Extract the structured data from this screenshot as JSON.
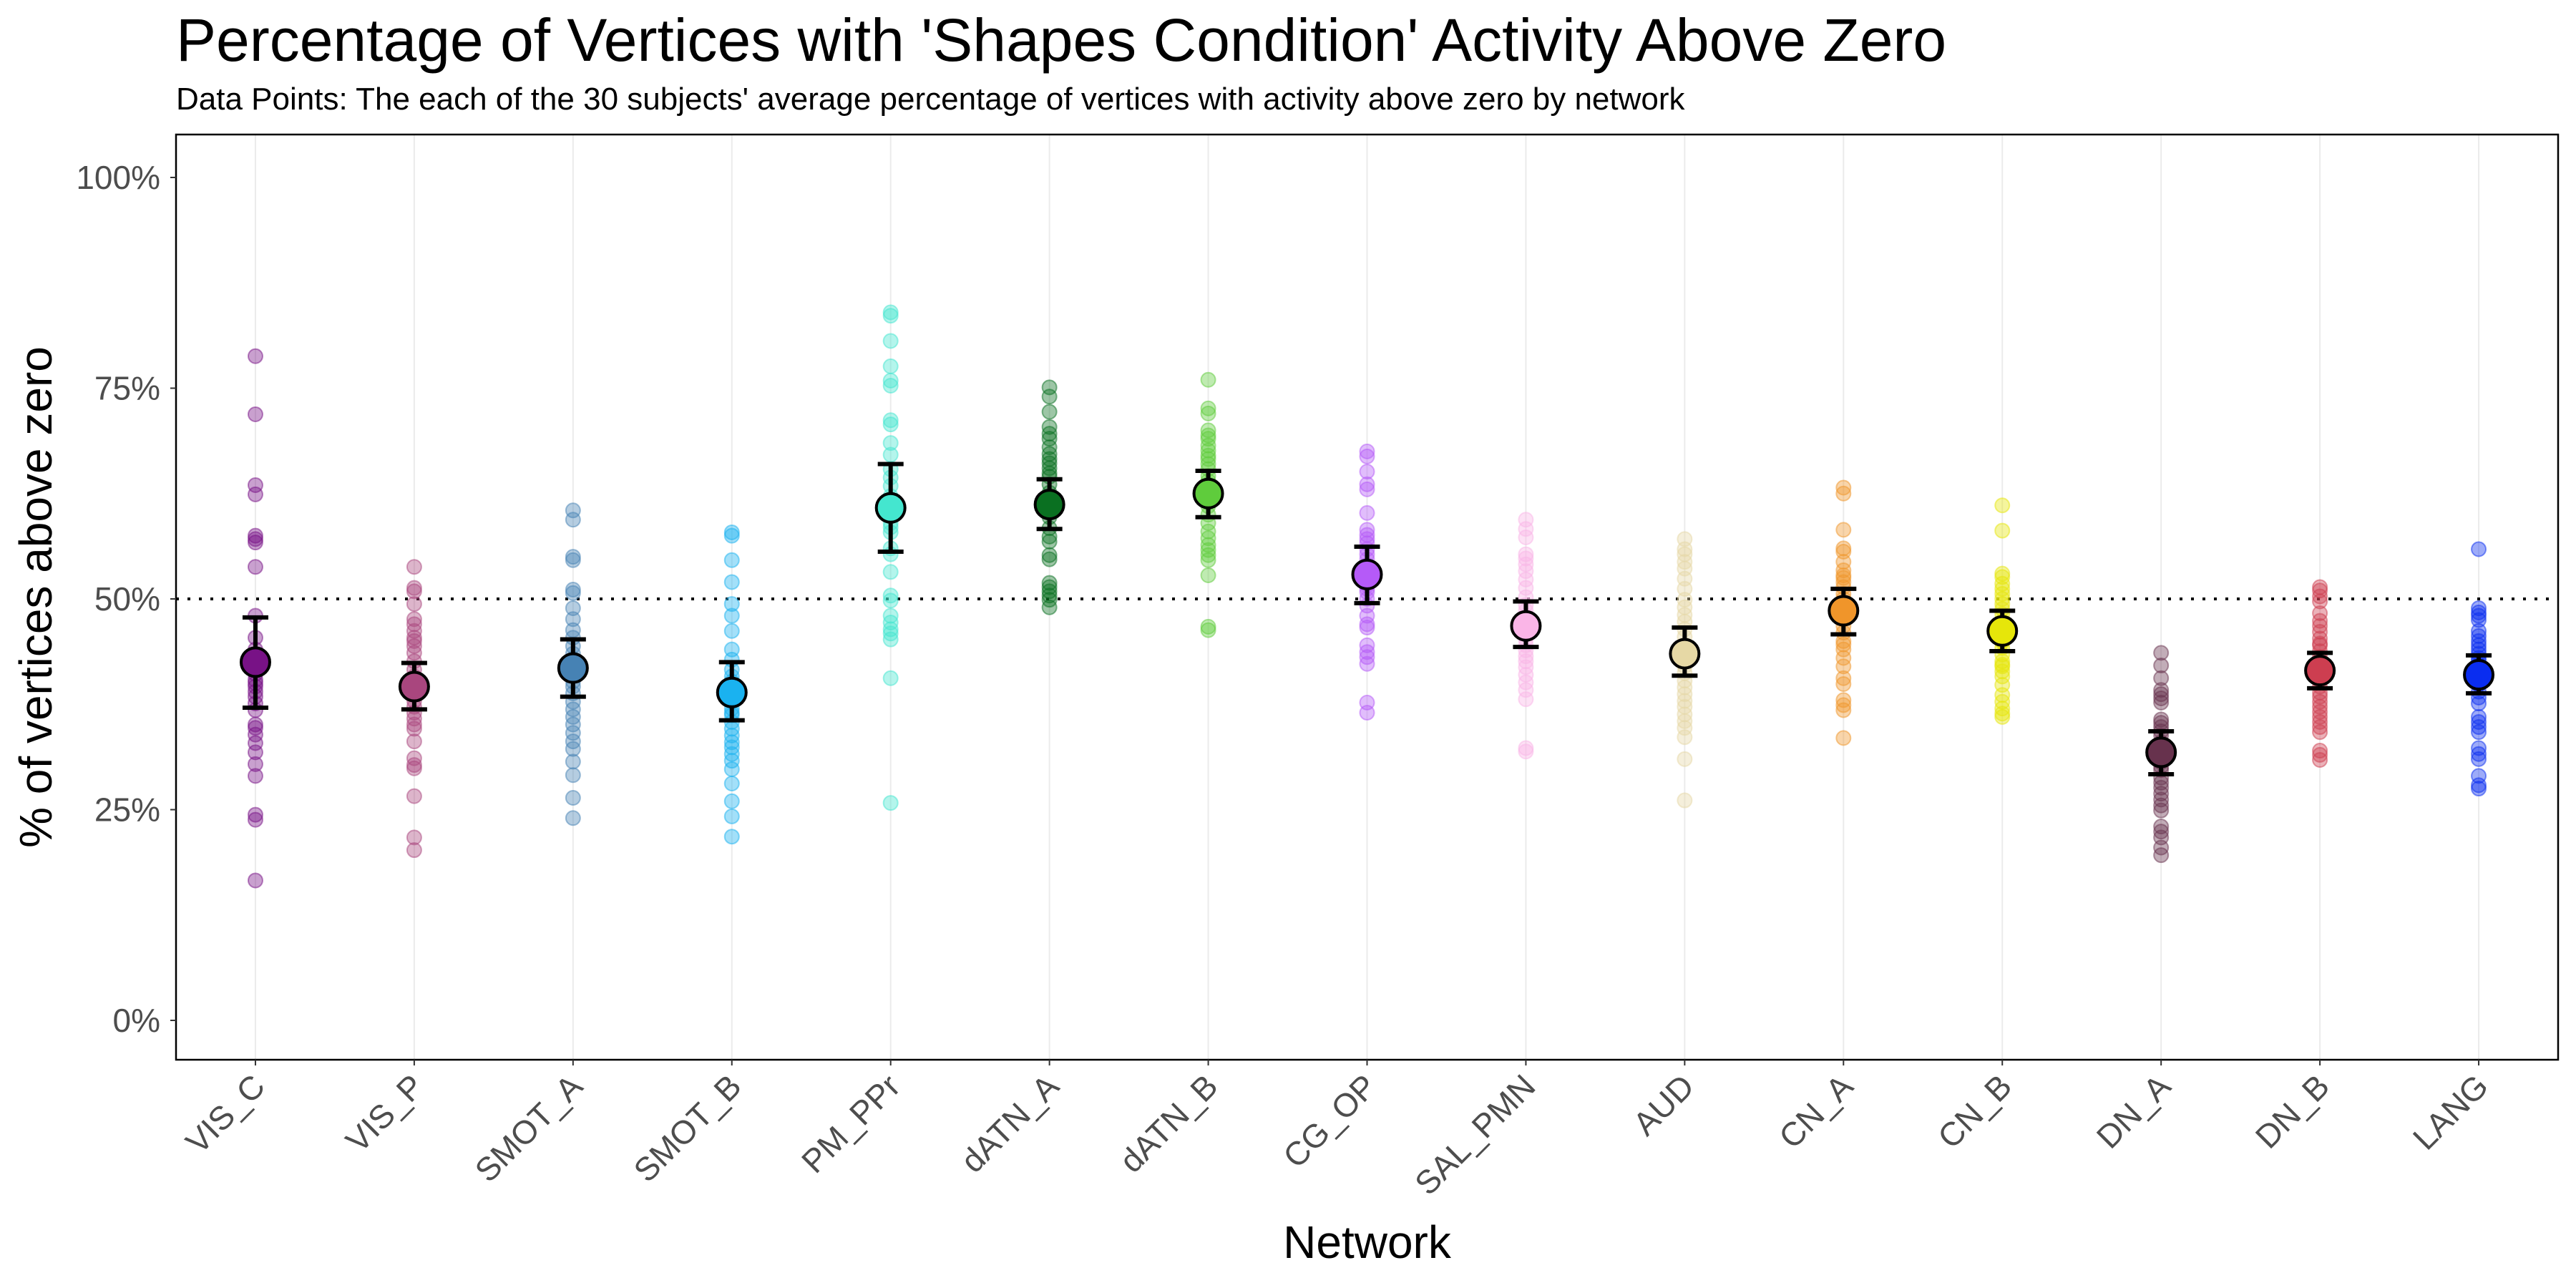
{
  "chart_data": {
    "type": "scatter",
    "title": "Percentage of Vertices with 'Shapes Condition' Activity Above Zero",
    "subtitle": "Data Points: The each of the 30 subjects' average percentage of vertices with activity above zero by network",
    "xlabel": "Network",
    "ylabel": "% of vertices above zero",
    "ylim": [
      0,
      100
    ],
    "yticks": [
      0,
      25,
      50,
      75,
      100
    ],
    "ytick_labels": [
      "0%",
      "25%",
      "50%",
      "75%",
      "100%"
    ],
    "reference_line": {
      "y": 50,
      "style": "dotted",
      "color": "#000000"
    },
    "grid": "vertical major gridlines only",
    "legend": "none",
    "categories": [
      "VIS_C",
      "VIS_P",
      "SMOT_A",
      "SMOT_B",
      "PM_PPr",
      "dATN_A",
      "dATN_B",
      "CG_OP",
      "SAL_PMN",
      "AUD",
      "CN_A",
      "CN_B",
      "DN_A",
      "DN_B",
      "LANG"
    ],
    "series": [
      {
        "name": "VIS_C",
        "color": "#781286",
        "mean": 42.5,
        "err_low": 37.1,
        "err_high": 47.8,
        "points": [
          78.8,
          71.9,
          63.5,
          62.4,
          57.5,
          57.1,
          56.7,
          53.8,
          48.0,
          45.4,
          44.0,
          41.9,
          41.1,
          40.4,
          39.6,
          39.0,
          38.4,
          37.6,
          36.8,
          35.1,
          34.7,
          33.9,
          32.9,
          31.8,
          30.4,
          29.0,
          24.4,
          23.8,
          16.6,
          40.0
        ]
      },
      {
        "name": "VIS_P",
        "color": "#A9467E",
        "mean": 39.6,
        "err_low": 36.9,
        "err_high": 42.4,
        "points": [
          53.8,
          51.3,
          50.9,
          49.4,
          47.6,
          47.0,
          46.2,
          45.4,
          44.4,
          43.6,
          42.6,
          41.6,
          40.8,
          40.0,
          39.2,
          38.6,
          37.9,
          37.2,
          36.5,
          35.8,
          35.1,
          34.6,
          33.1,
          31.1,
          30.3,
          29.9,
          26.6,
          21.7,
          20.2,
          45.0
        ]
      },
      {
        "name": "SMOT_A",
        "color": "#4682B4",
        "mean": 41.8,
        "err_low": 38.4,
        "err_high": 45.2,
        "points": [
          60.5,
          59.4,
          55.0,
          54.6,
          51.1,
          50.7,
          48.9,
          47.6,
          46.3,
          45.4,
          44.4,
          43.5,
          42.5,
          41.7,
          41.0,
          40.2,
          39.6,
          38.8,
          37.8,
          36.9,
          36.0,
          35.1,
          34.1,
          33.1,
          32.2,
          30.7,
          29.1,
          26.4,
          24.0,
          42.9
        ]
      },
      {
        "name": "SMOT_B",
        "color": "#1AB2F0",
        "mean": 38.9,
        "err_low": 35.6,
        "err_high": 42.5,
        "points": [
          57.9,
          57.5,
          54.6,
          52.0,
          49.4,
          48.0,
          46.2,
          44.0,
          42.8,
          41.6,
          40.2,
          39.4,
          38.6,
          37.8,
          37.0,
          36.2,
          35.4,
          34.6,
          33.8,
          33.0,
          32.4,
          31.6,
          30.8,
          29.8,
          28.1,
          26.0,
          24.2,
          21.8,
          36.5,
          40.8
        ]
      },
      {
        "name": "PM_PPr",
        "color": "#44E6CF",
        "mean": 60.8,
        "err_low": 55.6,
        "err_high": 66.0,
        "points": [
          84.0,
          83.6,
          80.6,
          77.6,
          75.9,
          75.3,
          71.2,
          70.7,
          68.5,
          67.1,
          65.4,
          64.4,
          63.4,
          62.2,
          61.5,
          59.0,
          57.9,
          56.0,
          55.3,
          53.2,
          50.4,
          49.8,
          48.0,
          47.2,
          46.4,
          45.9,
          45.2,
          40.6,
          25.8,
          58.5
        ]
      },
      {
        "name": "dATN_A",
        "color": "#0A7021",
        "mean": 61.2,
        "err_low": 58.3,
        "err_high": 64.2,
        "points": [
          75.1,
          74.0,
          72.2,
          70.4,
          69.6,
          69.0,
          68.0,
          67.2,
          66.6,
          66.1,
          65.5,
          64.9,
          64.5,
          63.6,
          62.6,
          61.8,
          60.8,
          59.7,
          58.4,
          57.4,
          56.8,
          55.2,
          54.7,
          51.9,
          51.4,
          50.9,
          50.4,
          49.9,
          49.0,
          60.2
        ]
      },
      {
        "name": "dATN_B",
        "color": "#5FCC3C",
        "mean": 62.5,
        "err_low": 59.7,
        "err_high": 65.2,
        "points": [
          76.0,
          72.6,
          72.0,
          70.0,
          69.4,
          69.0,
          68.2,
          67.6,
          67.0,
          66.6,
          66.0,
          65.4,
          64.6,
          64.0,
          63.0,
          62.0,
          61.0,
          60.0,
          59.0,
          58.0,
          57.2,
          56.4,
          55.8,
          55.2,
          54.6,
          52.8,
          46.7,
          46.3,
          61.5,
          63.6
        ]
      },
      {
        "name": "CG_OP",
        "color": "#B55AF8",
        "mean": 52.9,
        "err_low": 49.5,
        "err_high": 56.2,
        "points": [
          67.5,
          66.9,
          65.1,
          63.6,
          63.0,
          60.2,
          58.2,
          57.6,
          57.1,
          56.6,
          55.9,
          55.3,
          54.7,
          54.0,
          53.2,
          52.4,
          51.6,
          50.8,
          50.0,
          49.2,
          48.0,
          47.0,
          46.6,
          44.5,
          43.7,
          43.1,
          42.3,
          37.7,
          36.5,
          51.2
        ]
      },
      {
        "name": "SAL_PMN",
        "color": "#FAB5E7",
        "mean": 46.8,
        "err_low": 44.3,
        "err_high": 49.7,
        "points": [
          59.4,
          58.3,
          57.3,
          55.3,
          54.8,
          54.1,
          53.3,
          52.3,
          51.3,
          50.2,
          49.3,
          48.6,
          48.0,
          47.3,
          46.6,
          45.9,
          45.2,
          44.5,
          43.9,
          43.2,
          42.6,
          41.9,
          41.0,
          40.1,
          39.2,
          38.1,
          32.3,
          31.9,
          47.6,
          46.0
        ]
      },
      {
        "name": "AUD",
        "color": "#E6D8A5",
        "mean": 43.5,
        "err_low": 40.9,
        "err_high": 46.6,
        "points": [
          57.1,
          55.9,
          55.3,
          54.4,
          53.6,
          52.4,
          51.2,
          49.9,
          49.0,
          48.1,
          47.3,
          46.4,
          45.5,
          44.6,
          43.7,
          42.8,
          42.0,
          41.2,
          40.3,
          39.5,
          38.7,
          37.9,
          37.2,
          36.3,
          35.5,
          34.7,
          33.6,
          31.0,
          26.1,
          44.1
        ]
      },
      {
        "name": "CN_A",
        "color": "#F0952A",
        "mean": 48.6,
        "err_low": 45.8,
        "err_high": 51.2,
        "points": [
          63.2,
          62.5,
          58.2,
          56.0,
          55.6,
          54.4,
          53.4,
          52.8,
          52.0,
          51.4,
          50.6,
          50.0,
          49.2,
          48.4,
          47.6,
          46.8,
          46.0,
          45.0,
          44.0,
          43.0,
          42.0,
          40.6,
          39.9,
          38.0,
          37.4,
          36.8,
          33.5,
          48.8,
          52.5,
          44.6
        ]
      },
      {
        "name": "CN_B",
        "color": "#E6E60A",
        "mean": 46.2,
        "err_low": 43.8,
        "err_high": 48.6,
        "points": [
          61.1,
          58.1,
          53.0,
          52.6,
          51.8,
          51.2,
          50.6,
          50.0,
          49.4,
          48.8,
          48.2,
          47.4,
          46.6,
          45.8,
          45.0,
          44.2,
          43.4,
          42.6,
          42.0,
          41.4,
          40.8,
          39.8,
          38.6,
          37.8,
          37.0,
          36.4,
          36.0,
          47.0,
          44.9,
          42.2
        ]
      },
      {
        "name": "DN_A",
        "color": "#67324D",
        "mean": 31.8,
        "err_low": 29.2,
        "err_high": 34.3,
        "points": [
          43.6,
          42.1,
          40.6,
          39.2,
          38.7,
          38.2,
          37.7,
          35.7,
          35.3,
          34.8,
          34.3,
          33.8,
          33.0,
          32.2,
          31.4,
          30.6,
          29.7,
          28.8,
          28.2,
          27.6,
          26.9,
          26.2,
          25.5,
          24.9,
          23.0,
          22.4,
          21.7,
          20.5,
          19.6,
          30.1
        ]
      },
      {
        "name": "DN_B",
        "color": "#CD3E50",
        "mean": 41.5,
        "err_low": 39.4,
        "err_high": 43.6,
        "points": [
          51.4,
          51.0,
          50.3,
          49.7,
          48.3,
          47.4,
          46.8,
          46.1,
          45.3,
          44.5,
          43.8,
          43.1,
          42.4,
          41.7,
          41.0,
          40.3,
          39.6,
          38.9,
          38.4,
          37.8,
          37.2,
          36.6,
          36.0,
          35.4,
          34.8,
          34.2,
          32.0,
          31.5,
          30.9,
          44.7
        ]
      },
      {
        "name": "LANG",
        "color": "#0A2DF0",
        "mean": 41.0,
        "err_low": 38.8,
        "err_high": 43.3,
        "points": [
          55.9,
          48.9,
          48.4,
          48.0,
          47.5,
          46.2,
          45.6,
          45.0,
          44.5,
          44.0,
          43.5,
          43.0,
          42.2,
          41.4,
          40.6,
          39.8,
          39.0,
          38.3,
          37.6,
          36.0,
          35.4,
          34.8,
          34.2,
          32.3,
          31.6,
          31.0,
          29.0,
          27.5,
          27.9,
          42.7
        ]
      }
    ]
  }
}
